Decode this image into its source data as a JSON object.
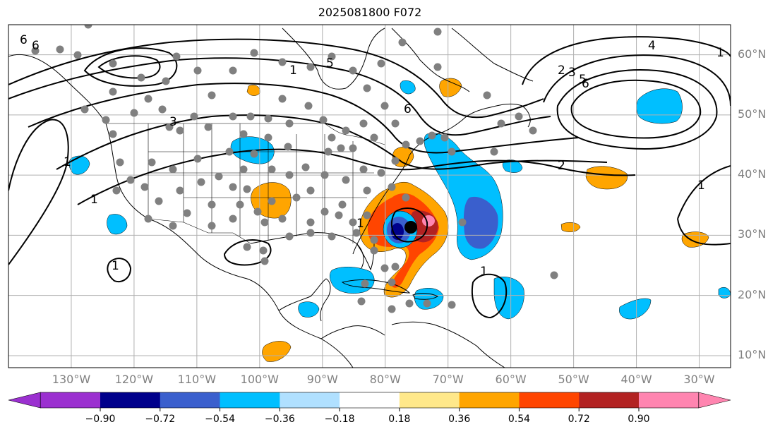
{
  "title": "2025081800 F072",
  "map": {
    "projection": "plate-carree",
    "lon_range": [
      -140,
      -25
    ],
    "lat_range": [
      8,
      65
    ],
    "land_color": "#ffffff",
    "coast_color": "#000000",
    "grid_color": "#b0b0b0",
    "station_color": "#808080",
    "storm_center_color": "#000000"
  },
  "lat_labels": [
    "10°N",
    "20°N",
    "30°N",
    "40°N",
    "50°N",
    "60°N"
  ],
  "lat_values": [
    10,
    20,
    30,
    40,
    50,
    60
  ],
  "lon_labels": [
    "130°W",
    "120°W",
    "110°W",
    "100°W",
    "90°W",
    "80°W",
    "70°W",
    "60°W",
    "50°W",
    "40°W",
    "30°W"
  ],
  "lon_values": [
    -130,
    -120,
    -110,
    -100,
    -90,
    -80,
    -70,
    -60,
    -50,
    -40,
    -30
  ],
  "colorbar": {
    "extend": "both",
    "colors": [
      "#9b30d0",
      "#00008b",
      "#3a5fcd",
      "#00bfff",
      "#b0e0ff",
      "#ffffff",
      "#ffe88a",
      "#ffa500",
      "#ff4500",
      "#b22222",
      "#ff85b0",
      "#ff85b0"
    ],
    "tick_labels": [
      "−0.90",
      "−0.72",
      "−0.54",
      "−0.36",
      "−0.18",
      "0.18",
      "0.36",
      "0.54",
      "0.72",
      "0.90"
    ]
  },
  "contour_labels": [
    "6",
    "6",
    "1",
    "5",
    "3",
    "6",
    "1",
    "2",
    "3",
    "5",
    "4",
    "6",
    "2",
    "1",
    "1",
    "1",
    "1",
    "1",
    "1"
  ]
}
